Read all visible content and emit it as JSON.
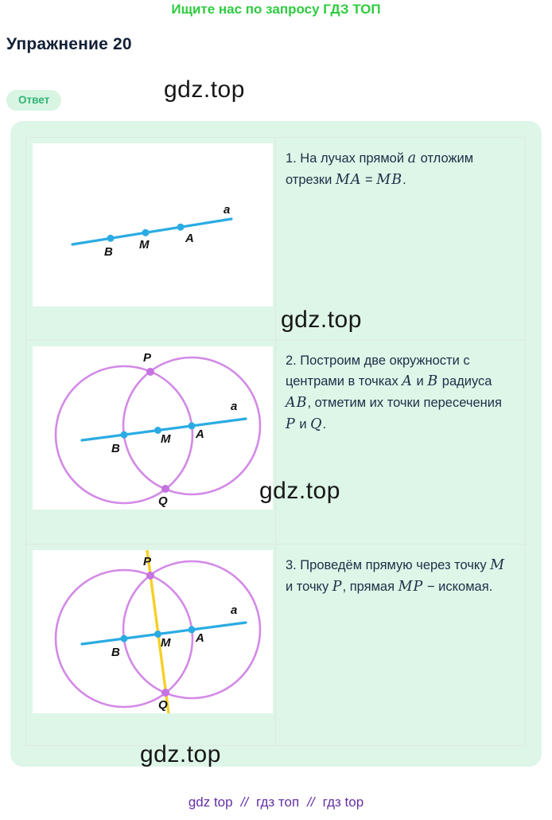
{
  "page": {
    "top_note": "Ищите нас по запросу ГДЗ ТОП",
    "title": "Упражнение 20",
    "answer_button_label": "Ответ",
    "watermark_text": "gdz.top"
  },
  "steps": [
    {
      "segments": [
        {
          "t": "1. На лучах прямой "
        },
        {
          "t": "a",
          "m": 1
        },
        {
          "t": " отложим отрезки "
        },
        {
          "t": "MA",
          "m": 1
        },
        {
          "t": " = "
        },
        {
          "t": "MB",
          "m": 1
        },
        {
          "t": "."
        }
      ]
    },
    {
      "segments": [
        {
          "t": "2. Построим две окружности с центрами в точках "
        },
        {
          "t": "A",
          "m": 1
        },
        {
          "t": " и "
        },
        {
          "t": "B",
          "m": 1
        },
        {
          "t": " радиуса "
        },
        {
          "t": "AB",
          "m": 1
        },
        {
          "t": ", отметим их точки пересечения "
        },
        {
          "t": "P",
          "m": 1
        },
        {
          "t": " и "
        },
        {
          "t": "Q",
          "m": 1
        },
        {
          "t": "."
        }
      ]
    },
    {
      "segments": [
        {
          "t": "3. Проведём прямую через точку "
        },
        {
          "t": "M",
          "m": 1
        },
        {
          "t": " и точку "
        },
        {
          "t": "P",
          "m": 1
        },
        {
          "t": ", прямая "
        },
        {
          "t": "MP",
          "m": 1
        },
        {
          "t": " − искомая."
        }
      ]
    }
  ],
  "figures": {
    "labels": {
      "a": "a",
      "A": "A",
      "B": "B",
      "M": "M",
      "P": "P",
      "Q": "Q"
    }
  },
  "footer": {
    "links": [
      "gdz top",
      "гдз топ",
      "гдз top"
    ],
    "separator": "//"
  },
  "colors": {
    "accent_green": "#2ecc40",
    "pill_bg": "#d8f4e2",
    "pill_text": "#32b377",
    "panel_bg": "#ddf6e8",
    "table_border": "#dee9e0",
    "line_blue": "#2aabe3",
    "circle_violet": "#d38ae6",
    "point_violet": "#c672e0",
    "line_yellow": "#f7cf25",
    "footer_purple": "#6530a5",
    "heading_navy": "#121f36"
  }
}
